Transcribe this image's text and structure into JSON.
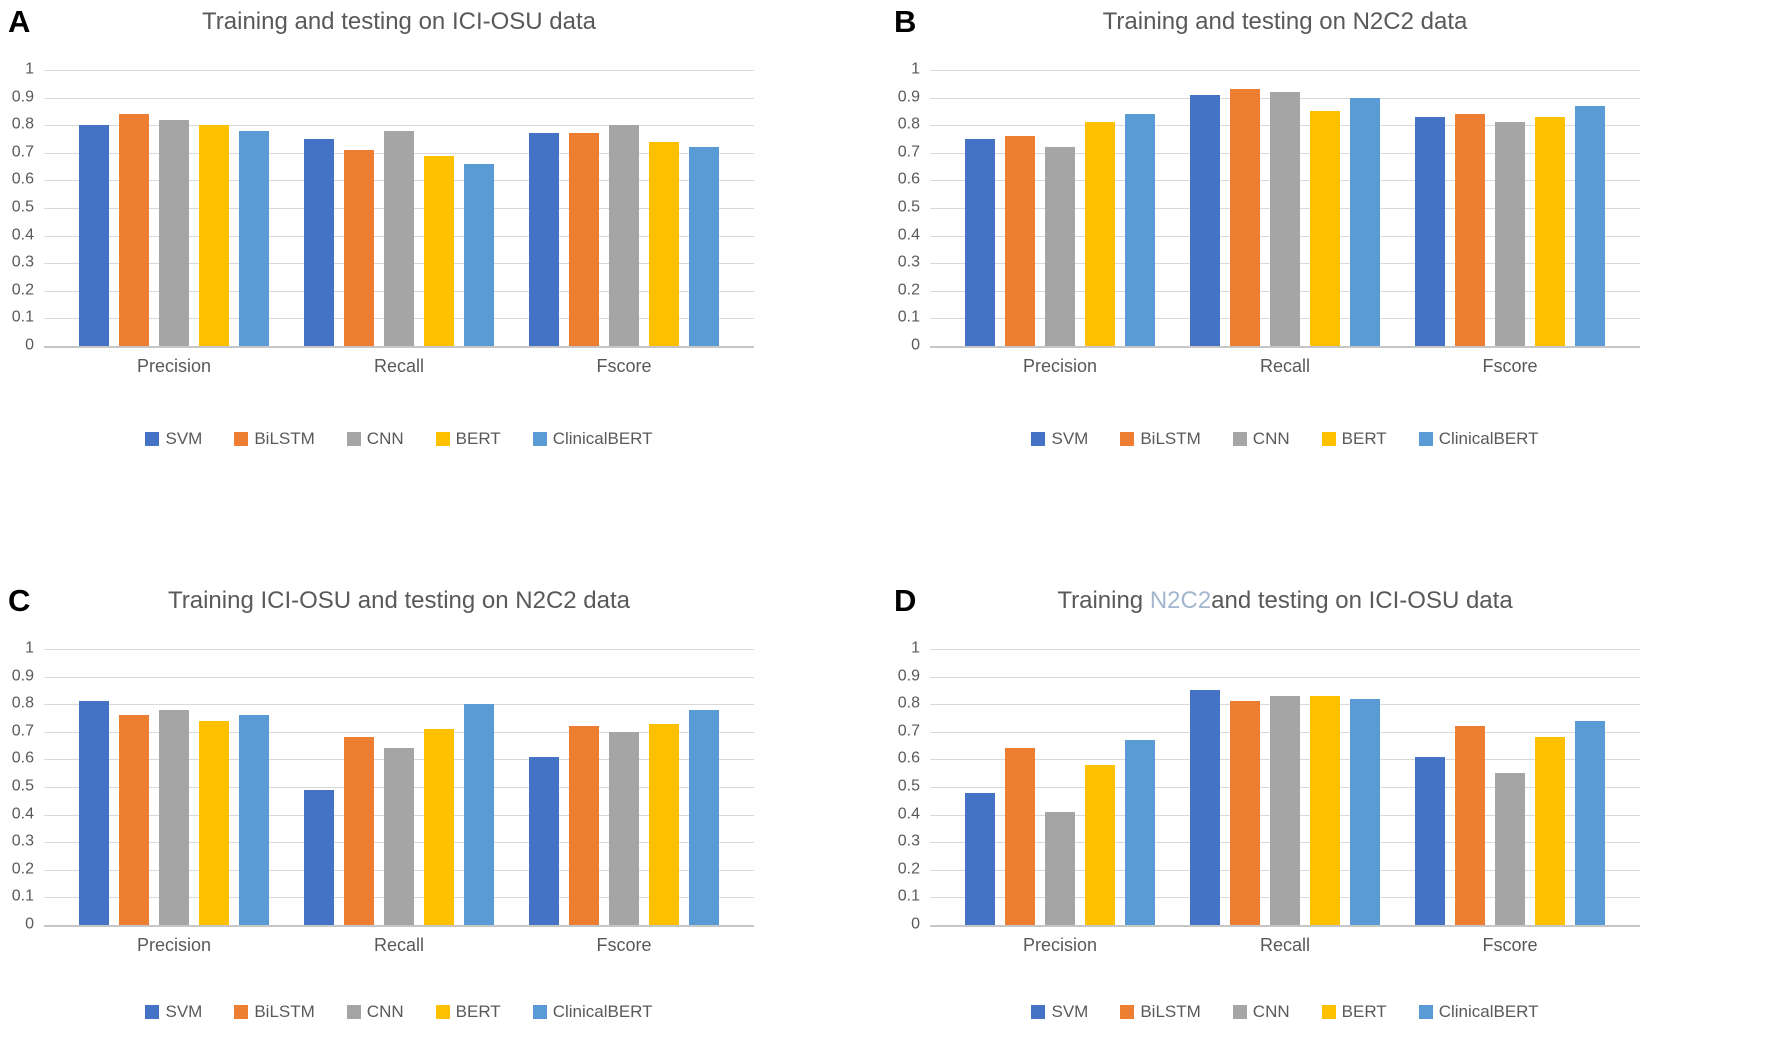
{
  "figure_type": "four-panel grouped bar chart figure",
  "palette": {
    "SVM": "#4472C4",
    "BiLSTM": "#ED7D31",
    "CNN": "#A5A5A5",
    "BERT": "#FFC000",
    "ClinicalBERT": "#5B9BD5",
    "title_text": "#595959",
    "axis_text": "#595959",
    "gridline": "#D9D9D9",
    "baseline": "#C6C6C6",
    "panel_letter": "#000000",
    "d_title_highlight": "#A3B6CE"
  },
  "chart_data": [
    {
      "panel_letter": "A",
      "type": "bar",
      "title": "Training and testing on ICI-OSU data",
      "title_segments": [
        {
          "text": "Training and testing on ICI-OSU data"
        }
      ],
      "categories": [
        "Precision",
        "Recall",
        "Fscore"
      ],
      "series": [
        {
          "name": "SVM",
          "color": "#4472C4",
          "values": [
            0.8,
            0.75,
            0.77
          ]
        },
        {
          "name": "BiLSTM",
          "color": "#ED7D31",
          "values": [
            0.84,
            0.71,
            0.77
          ]
        },
        {
          "name": "CNN",
          "color": "#A5A5A5",
          "values": [
            0.82,
            0.78,
            0.8
          ]
        },
        {
          "name": "BERT",
          "color": "#FFC000",
          "values": [
            0.8,
            0.69,
            0.74
          ]
        },
        {
          "name": "ClinicalBERT",
          "color": "#5B9BD5",
          "values": [
            0.78,
            0.66,
            0.72
          ]
        }
      ],
      "ylim": [
        0,
        1
      ],
      "yticks": [
        "1",
        "0.9",
        "0.8",
        "0.7",
        "0.6",
        "0.5",
        "0.4",
        "0.3",
        "0.2",
        "0.1",
        "0"
      ],
      "grid": true,
      "legend": [
        "SVM",
        "BiLSTM",
        "CNN",
        "BERT",
        "ClinicalBERT"
      ],
      "legend_position": "bottom"
    },
    {
      "panel_letter": "B",
      "type": "bar",
      "title": "Training and testing on N2C2 data",
      "title_segments": [
        {
          "text": "Training and testing on N2C2 data"
        }
      ],
      "categories": [
        "Precision",
        "Recall",
        "Fscore"
      ],
      "series": [
        {
          "name": "SVM",
          "color": "#4472C4",
          "values": [
            0.75,
            0.91,
            0.83
          ]
        },
        {
          "name": "BiLSTM",
          "color": "#ED7D31",
          "values": [
            0.76,
            0.93,
            0.84
          ]
        },
        {
          "name": "CNN",
          "color": "#A5A5A5",
          "values": [
            0.72,
            0.92,
            0.81
          ]
        },
        {
          "name": "BERT",
          "color": "#FFC000",
          "values": [
            0.81,
            0.85,
            0.83
          ]
        },
        {
          "name": "ClinicalBERT",
          "color": "#5B9BD5",
          "values": [
            0.84,
            0.9,
            0.87
          ]
        }
      ],
      "ylim": [
        0,
        1
      ],
      "yticks": [
        "1",
        "0.9",
        "0.8",
        "0.7",
        "0.6",
        "0.5",
        "0.4",
        "0.3",
        "0.2",
        "0.1",
        "0"
      ],
      "grid": true,
      "legend": [
        "SVM",
        "BiLSTM",
        "CNN",
        "BERT",
        "ClinicalBERT"
      ],
      "legend_position": "bottom"
    },
    {
      "panel_letter": "C",
      "type": "bar",
      "title": "Training ICI-OSU and testing on N2C2 data",
      "title_segments": [
        {
          "text": "Training ICI-OSU and testing on N2C2 data"
        }
      ],
      "categories": [
        "Precision",
        "Recall",
        "Fscore"
      ],
      "series": [
        {
          "name": "SVM",
          "color": "#4472C4",
          "values": [
            0.81,
            0.49,
            0.61
          ]
        },
        {
          "name": "BiLSTM",
          "color": "#ED7D31",
          "values": [
            0.76,
            0.68,
            0.72
          ]
        },
        {
          "name": "CNN",
          "color": "#A5A5A5",
          "values": [
            0.78,
            0.64,
            0.7
          ]
        },
        {
          "name": "BERT",
          "color": "#FFC000",
          "values": [
            0.74,
            0.71,
            0.73
          ]
        },
        {
          "name": "ClinicalBERT",
          "color": "#5B9BD5",
          "values": [
            0.76,
            0.8,
            0.78
          ]
        }
      ],
      "ylim": [
        0,
        1
      ],
      "yticks": [
        "1",
        "0.9",
        "0.8",
        "0.7",
        "0.6",
        "0.5",
        "0.4",
        "0.3",
        "0.2",
        "0.1",
        "0"
      ],
      "grid": true,
      "legend": [
        "SVM",
        "BiLSTM",
        "CNN",
        "BERT",
        "ClinicalBERT"
      ],
      "legend_position": "bottom"
    },
    {
      "panel_letter": "D",
      "type": "bar",
      "title": "Training N2C2and testing on ICI-OSU data",
      "title_segments": [
        {
          "text": "Training "
        },
        {
          "text": "N2C2",
          "color": "#A3B6CE"
        },
        {
          "text": "and testing on ICI-OSU data"
        }
      ],
      "categories": [
        "Precision",
        "Recall",
        "Fscore"
      ],
      "series": [
        {
          "name": "SVM",
          "color": "#4472C4",
          "values": [
            0.48,
            0.85,
            0.61
          ]
        },
        {
          "name": "BiLSTM",
          "color": "#ED7D31",
          "values": [
            0.64,
            0.81,
            0.72
          ]
        },
        {
          "name": "CNN",
          "color": "#A5A5A5",
          "values": [
            0.41,
            0.83,
            0.55
          ]
        },
        {
          "name": "BERT",
          "color": "#FFC000",
          "values": [
            0.58,
            0.83,
            0.68
          ]
        },
        {
          "name": "ClinicalBERT",
          "color": "#5B9BD5",
          "values": [
            0.67,
            0.82,
            0.74
          ]
        }
      ],
      "ylim": [
        0,
        1
      ],
      "yticks": [
        "1",
        "0.9",
        "0.8",
        "0.7",
        "0.6",
        "0.5",
        "0.4",
        "0.3",
        "0.2",
        "0.1",
        "0"
      ],
      "grid": true,
      "legend": [
        "SVM",
        "BiLSTM",
        "CNN",
        "BERT",
        "ClinicalBERT"
      ],
      "legend_position": "bottom"
    }
  ]
}
